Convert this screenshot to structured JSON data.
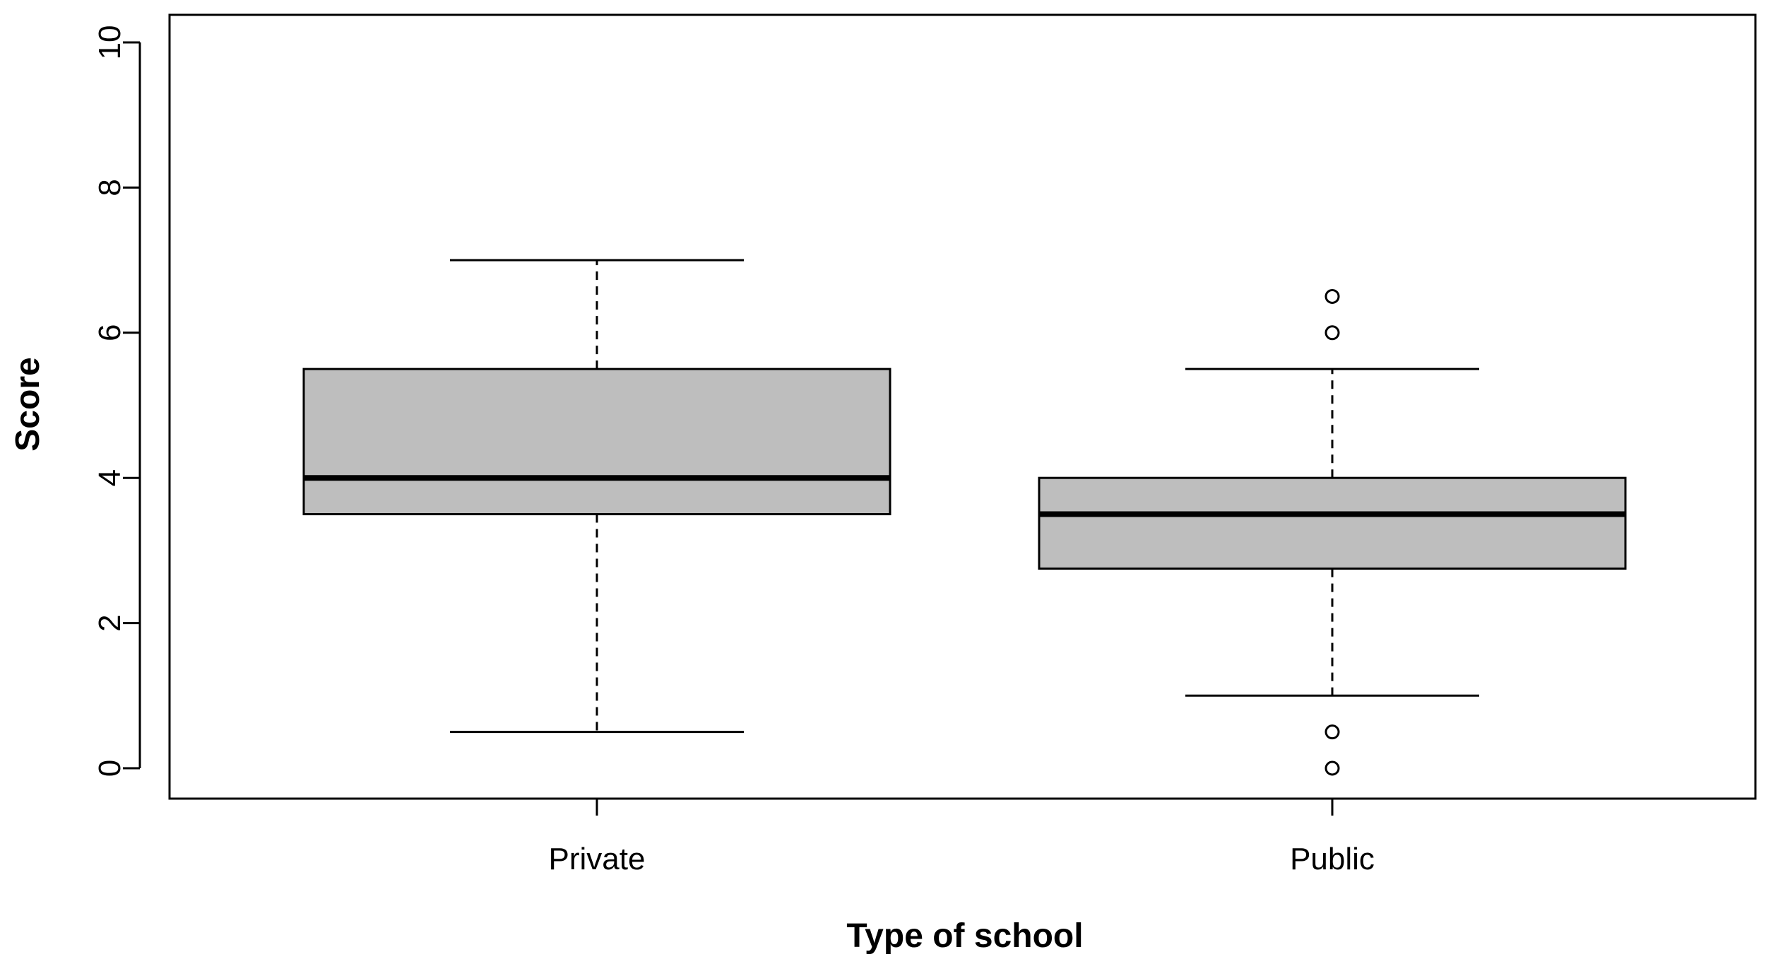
{
  "chart_data": {
    "type": "box",
    "title": "",
    "xlabel": "Type of school",
    "ylabel": "Score",
    "ylim": [
      -0.4,
      10.4
    ],
    "yticks": [
      "0",
      "2",
      "4",
      "6",
      "8",
      "10"
    ],
    "grid": false,
    "categories": [
      "Private",
      "Public"
    ],
    "boxes": [
      {
        "category": "Private",
        "whisker_low": 0.5,
        "q1": 3.5,
        "median": 4,
        "q3": 5.5,
        "whisker_high": 7,
        "outliers": []
      },
      {
        "category": "Public",
        "whisker_low": 1,
        "q1": 2.75,
        "median": 3.5,
        "q3": 4,
        "whisker_high": 5.5,
        "outliers": [
          0,
          0.5,
          6,
          6.5
        ]
      }
    ],
    "colors": {
      "box_fill": "#bebebe",
      "line": "#000000"
    }
  }
}
